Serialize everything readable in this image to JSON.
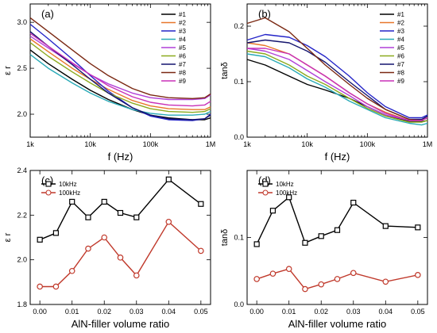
{
  "chart_data": [
    {
      "panel": "(a)",
      "type": "line",
      "title": "",
      "xlabel": "f (Hz)",
      "ylabel": "ε r",
      "xscale": "log",
      "xlim": [
        1000,
        1000000
      ],
      "ylim": [
        1.75,
        3.2
      ],
      "xticks": [
        1000,
        10000,
        100000,
        1000000
      ],
      "xtick_labels": [
        "1k",
        "10k",
        "100k",
        "1M"
      ],
      "yticks": [
        2.0,
        2.5,
        3.0
      ],
      "ytick_labels": [
        "2.0",
        "2.5",
        "3.0"
      ],
      "legend_position": "top-right",
      "x": [
        1000,
        2000,
        5000,
        10000,
        20000,
        50000,
        100000,
        200000,
        500000,
        800000,
        1000000
      ],
      "series": [
        {
          "name": "#1",
          "color": "#000000",
          "values": [
            2.7,
            2.55,
            2.38,
            2.26,
            2.16,
            2.05,
            1.99,
            1.96,
            1.94,
            1.94,
            1.96
          ]
        },
        {
          "name": "#2",
          "color": "#e8772a",
          "values": [
            2.82,
            2.68,
            2.5,
            2.38,
            2.27,
            2.15,
            2.09,
            2.06,
            2.05,
            2.05,
            2.08
          ]
        },
        {
          "name": "#3",
          "color": "#2424c8",
          "values": [
            2.98,
            2.82,
            2.6,
            2.42,
            2.25,
            2.07,
            1.98,
            1.94,
            1.93,
            1.95,
            2.0
          ]
        },
        {
          "name": "#4",
          "color": "#29aab7",
          "values": [
            2.65,
            2.5,
            2.34,
            2.23,
            2.14,
            2.05,
            2.01,
            1.99,
            1.99,
            2.0,
            2.03
          ]
        },
        {
          "name": "#5",
          "color": "#b040d8",
          "values": [
            2.85,
            2.72,
            2.55,
            2.43,
            2.33,
            2.23,
            2.18,
            2.16,
            2.16,
            2.17,
            2.21
          ]
        },
        {
          "name": "#6",
          "color": "#8caa1e",
          "values": [
            2.78,
            2.63,
            2.46,
            2.34,
            2.23,
            2.12,
            2.06,
            2.03,
            2.02,
            2.03,
            2.06
          ]
        },
        {
          "name": "#7",
          "color": "#14146e",
          "values": [
            2.9,
            2.74,
            2.54,
            2.38,
            2.23,
            2.07,
            1.99,
            1.95,
            1.94,
            1.95,
            1.99
          ]
        },
        {
          "name": "#8",
          "color": "#7a2812",
          "values": [
            3.05,
            2.9,
            2.7,
            2.55,
            2.42,
            2.28,
            2.21,
            2.18,
            2.17,
            2.18,
            2.22
          ]
        },
        {
          "name": "#9",
          "color": "#c830b8",
          "values": [
            2.88,
            2.74,
            2.56,
            2.43,
            2.31,
            2.19,
            2.13,
            2.1,
            2.09,
            2.1,
            2.14
          ]
        }
      ]
    },
    {
      "panel": "(b)",
      "type": "line",
      "title": "",
      "xlabel": "f (Hz)",
      "ylabel": "tanδ",
      "xscale": "log",
      "xlim": [
        1000,
        1000000
      ],
      "ylim": [
        0.0,
        0.24
      ],
      "xticks": [
        1000,
        10000,
        100000,
        1000000
      ],
      "xtick_labels": [
        "1k",
        "10k",
        "100k",
        "1M"
      ],
      "yticks": [
        0.0,
        0.1,
        0.2
      ],
      "ytick_labels": [
        "0.0",
        "0.1",
        "0.2"
      ],
      "legend_position": "top-right",
      "x": [
        1000,
        2000,
        5000,
        10000,
        20000,
        50000,
        100000,
        200000,
        500000,
        800000,
        1000000
      ],
      "series": [
        {
          "name": "#1",
          "color": "#000000",
          "values": [
            0.14,
            0.13,
            0.11,
            0.095,
            0.085,
            0.07,
            0.055,
            0.04,
            0.028,
            0.028,
            0.03
          ]
        },
        {
          "name": "#2",
          "color": "#e8772a",
          "values": [
            0.17,
            0.165,
            0.15,
            0.13,
            0.11,
            0.08,
            0.06,
            0.045,
            0.03,
            0.03,
            0.035
          ]
        },
        {
          "name": "#3",
          "color": "#2424c8",
          "values": [
            0.175,
            0.185,
            0.18,
            0.165,
            0.145,
            0.11,
            0.08,
            0.055,
            0.035,
            0.035,
            0.04
          ]
        },
        {
          "name": "#4",
          "color": "#29aab7",
          "values": [
            0.15,
            0.145,
            0.125,
            0.105,
            0.09,
            0.065,
            0.05,
            0.035,
            0.025,
            0.022,
            0.025
          ]
        },
        {
          "name": "#5",
          "color": "#b040d8",
          "values": [
            0.16,
            0.155,
            0.14,
            0.12,
            0.1,
            0.075,
            0.055,
            0.04,
            0.03,
            0.03,
            0.035
          ]
        },
        {
          "name": "#6",
          "color": "#8caa1e",
          "values": [
            0.155,
            0.15,
            0.13,
            0.11,
            0.095,
            0.07,
            0.052,
            0.038,
            0.027,
            0.027,
            0.03
          ]
        },
        {
          "name": "#7",
          "color": "#14146e",
          "values": [
            0.17,
            0.175,
            0.17,
            0.155,
            0.135,
            0.1,
            0.075,
            0.05,
            0.032,
            0.032,
            0.038
          ]
        },
        {
          "name": "#8",
          "color": "#7a2812",
          "values": [
            0.205,
            0.215,
            0.19,
            0.16,
            0.13,
            0.095,
            0.07,
            0.05,
            0.032,
            0.03,
            0.035
          ]
        },
        {
          "name": "#9",
          "color": "#c830b8",
          "values": [
            0.16,
            0.16,
            0.15,
            0.13,
            0.11,
            0.08,
            0.06,
            0.043,
            0.03,
            0.03,
            0.035
          ]
        }
      ]
    },
    {
      "panel": "(c)",
      "type": "line",
      "title": "",
      "xlabel": "AlN-filler volume ratio",
      "ylabel": "ε r",
      "xlim": [
        -0.003,
        0.053
      ],
      "ylim": [
        1.8,
        2.4
      ],
      "xticks": [
        0.0,
        0.01,
        0.02,
        0.03,
        0.04,
        0.05
      ],
      "xtick_labels": [
        "0.00",
        "0.01",
        "0.02",
        "0.03",
        "0.04",
        "0.05"
      ],
      "yticks": [
        1.8,
        2.0,
        2.2,
        2.4
      ],
      "ytick_labels": [
        "1.8",
        "2.0",
        "2.2",
        "2.4"
      ],
      "legend_position": "top-left",
      "x": [
        0.0,
        0.005,
        0.01,
        0.015,
        0.02,
        0.025,
        0.03,
        0.04,
        0.05
      ],
      "series": [
        {
          "name": "10kHz",
          "color": "#000000",
          "marker": "square",
          "values": [
            2.09,
            2.12,
            2.26,
            2.19,
            2.26,
            2.21,
            2.19,
            2.36,
            2.25
          ]
        },
        {
          "name": "100kHz",
          "color": "#c0392b",
          "marker": "circle",
          "values": [
            1.88,
            1.88,
            1.95,
            2.05,
            2.1,
            2.01,
            1.93,
            2.17,
            2.04
          ]
        }
      ]
    },
    {
      "panel": "(d)",
      "type": "line",
      "title": "",
      "xlabel": "AlN-filler volume ratio",
      "ylabel": "tanδ",
      "xlim": [
        -0.003,
        0.053
      ],
      "ylim": [
        0.0,
        0.2
      ],
      "xticks": [
        0.0,
        0.01,
        0.02,
        0.03,
        0.04,
        0.05
      ],
      "xtick_labels": [
        "0.00",
        "0.01",
        "0.02",
        "0.03",
        "0.04",
        "0.05"
      ],
      "yticks": [
        0.0,
        0.1
      ],
      "ytick_labels": [
        "0.0",
        "0.1"
      ],
      "legend_position": "top-left",
      "x": [
        0.0,
        0.005,
        0.01,
        0.015,
        0.02,
        0.025,
        0.03,
        0.04,
        0.05
      ],
      "series": [
        {
          "name": "10kHz",
          "color": "#000000",
          "marker": "square",
          "values": [
            0.09,
            0.14,
            0.16,
            0.092,
            0.102,
            0.111,
            0.152,
            0.117,
            0.115
          ]
        },
        {
          "name": "100kHz",
          "color": "#c0392b",
          "marker": "circle",
          "values": [
            0.038,
            0.046,
            0.053,
            0.023,
            0.03,
            0.038,
            0.047,
            0.034,
            0.044
          ]
        }
      ]
    }
  ]
}
